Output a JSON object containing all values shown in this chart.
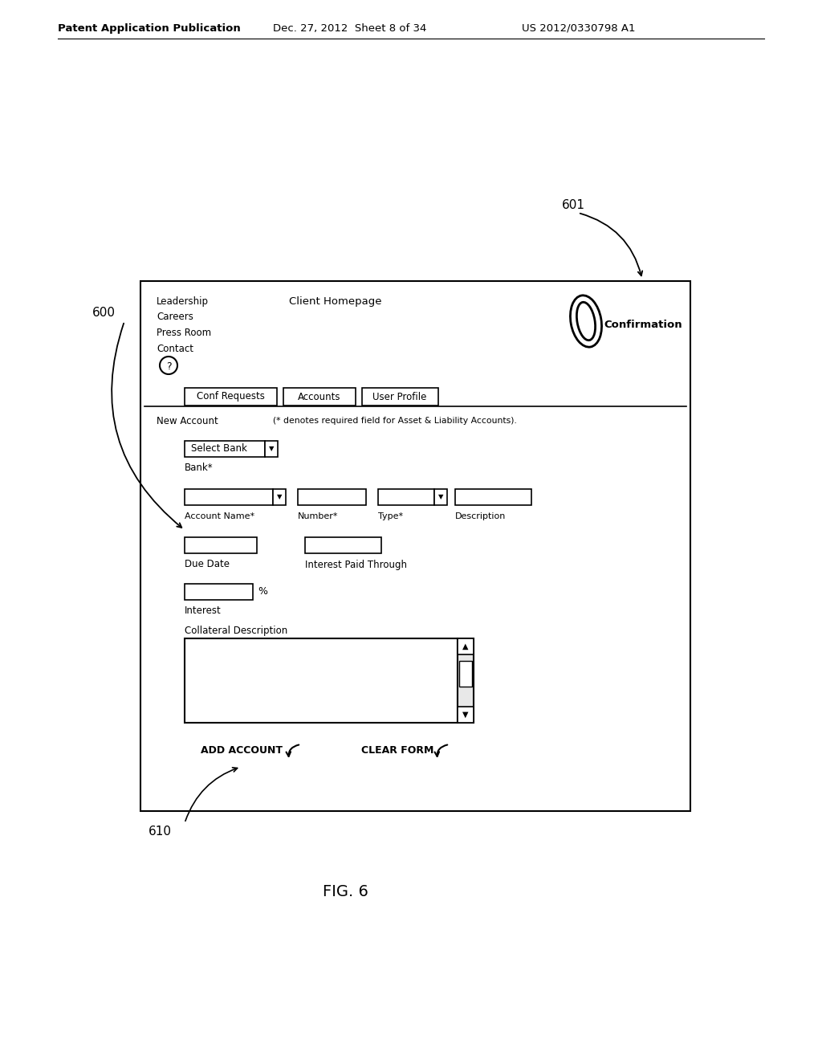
{
  "header_left": "Patent Application Publication",
  "header_mid": "Dec. 27, 2012  Sheet 8 of 34",
  "header_right": "US 2012/0330798 A1",
  "figure_label": "FIG. 6",
  "label_600": "600",
  "label_601": "601",
  "label_610": "610",
  "nav_items": [
    "Leadership",
    "Careers",
    "Press Room",
    "Contact"
  ],
  "homepage_title": "Client Homepage",
  "confirmation_text": "Confirmation",
  "tab1": "Conf Requests",
  "tab2": "Accounts",
  "tab3": "User Profile",
  "new_account_text": "New Account",
  "required_note": "(* denotes required field for Asset & Liability Accounts).",
  "select_bank_text": "Select Bank",
  "bank_label": "Bank*",
  "account_name_label": "Account Name*",
  "number_label": "Number*",
  "type_label": "Type*",
  "description_label": "Description",
  "due_date_label": "Due Date",
  "interest_paid_label": "Interest Paid Through",
  "interest_label": "Interest",
  "percent_symbol": "%",
  "collateral_label": "Collateral Description",
  "add_account_btn": "ADD ACCOUNT",
  "clear_form_btn": "CLEAR FORM",
  "bg_color": "#ffffff",
  "box_color": "#000000",
  "text_color": "#000000"
}
